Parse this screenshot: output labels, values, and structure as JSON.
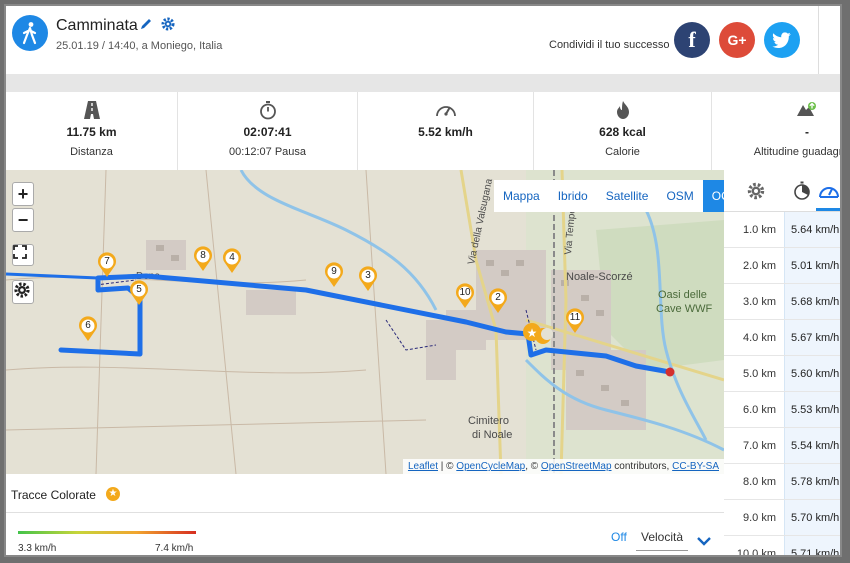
{
  "activity": {
    "title": "Camminata",
    "subtitle": "25.01.19 / 14:40, a Moniego, Italia"
  },
  "share": {
    "label": "Condividi il tuo successo",
    "facebook_glyph": "f",
    "google_glyph": "G+"
  },
  "stats": [
    {
      "icon": "road-icon",
      "value": "11.75 km",
      "label": "Distanza"
    },
    {
      "icon": "stopwatch-icon",
      "value": "02:07:41",
      "label": "00:12:07 Pausa"
    },
    {
      "icon": "speedometer-icon",
      "value": "5.52 km/h",
      "label": ""
    },
    {
      "icon": "flame-icon",
      "value": "628 kcal",
      "label": "Calorie"
    },
    {
      "icon": "mountain-up-icon",
      "value": "-",
      "label": "Altitudine guadagnata"
    }
  ],
  "map": {
    "zoom_in": "+",
    "zoom_out": "−",
    "layers": [
      "Mappa",
      "Ibrido",
      "Satellite",
      "OSM",
      "OCM"
    ],
    "active_layer": "OCM",
    "attribution": {
      "leaflet": "Leaflet",
      "sep1": " | © ",
      "ocm": "OpenCycleMap",
      "sep2": ", © ",
      "osm": "OpenStreetMap",
      "contrib": " contributors, ",
      "license": "CC-BY-SA"
    },
    "place_labels": {
      "via_valsugana": "Via della Valsugana",
      "via_tempesta": "Via Tempesta",
      "noale_scorze": "Noale-Scorzé",
      "oasi": "Oasi delle",
      "cave": "Cave WWF",
      "cimitero": "Cimitero",
      "di_noale": "di Noale",
      "via_dono": "Dono"
    },
    "markers": [
      "1",
      "2",
      "3",
      "4",
      "5",
      "6",
      "7",
      "8",
      "9",
      "10",
      "11"
    ]
  },
  "split_table": {
    "rows": [
      {
        "km": "1.0 km",
        "speed": "5.64 km/h"
      },
      {
        "km": "2.0 km",
        "speed": "5.01 km/h"
      },
      {
        "km": "3.0 km",
        "speed": "5.68 km/h"
      },
      {
        "km": "4.0 km",
        "speed": "5.67 km/h"
      },
      {
        "km": "5.0 km",
        "speed": "5.60 km/h"
      },
      {
        "km": "6.0 km",
        "speed": "5.53 km/h"
      },
      {
        "km": "7.0 km",
        "speed": "5.54 km/h"
      },
      {
        "km": "8.0 km",
        "speed": "5.78 km/h"
      },
      {
        "km": "9.0 km",
        "speed": "5.70 km/h"
      },
      {
        "km": "10.0 km",
        "speed": "5.71 km/h"
      }
    ]
  },
  "tracks": {
    "title": "Tracce Colorate",
    "legend_min": "3.3 km/h",
    "legend_max": "7.4 km/h",
    "off_label": "Off",
    "metric_label": "Velocità"
  },
  "colors": {
    "accent": "#1e88e5",
    "route": "#1e6fe8",
    "marker": "#f3a91b",
    "facebook": "#2d4373",
    "google": "#dd4b39",
    "twitter": "#1da1f2"
  }
}
